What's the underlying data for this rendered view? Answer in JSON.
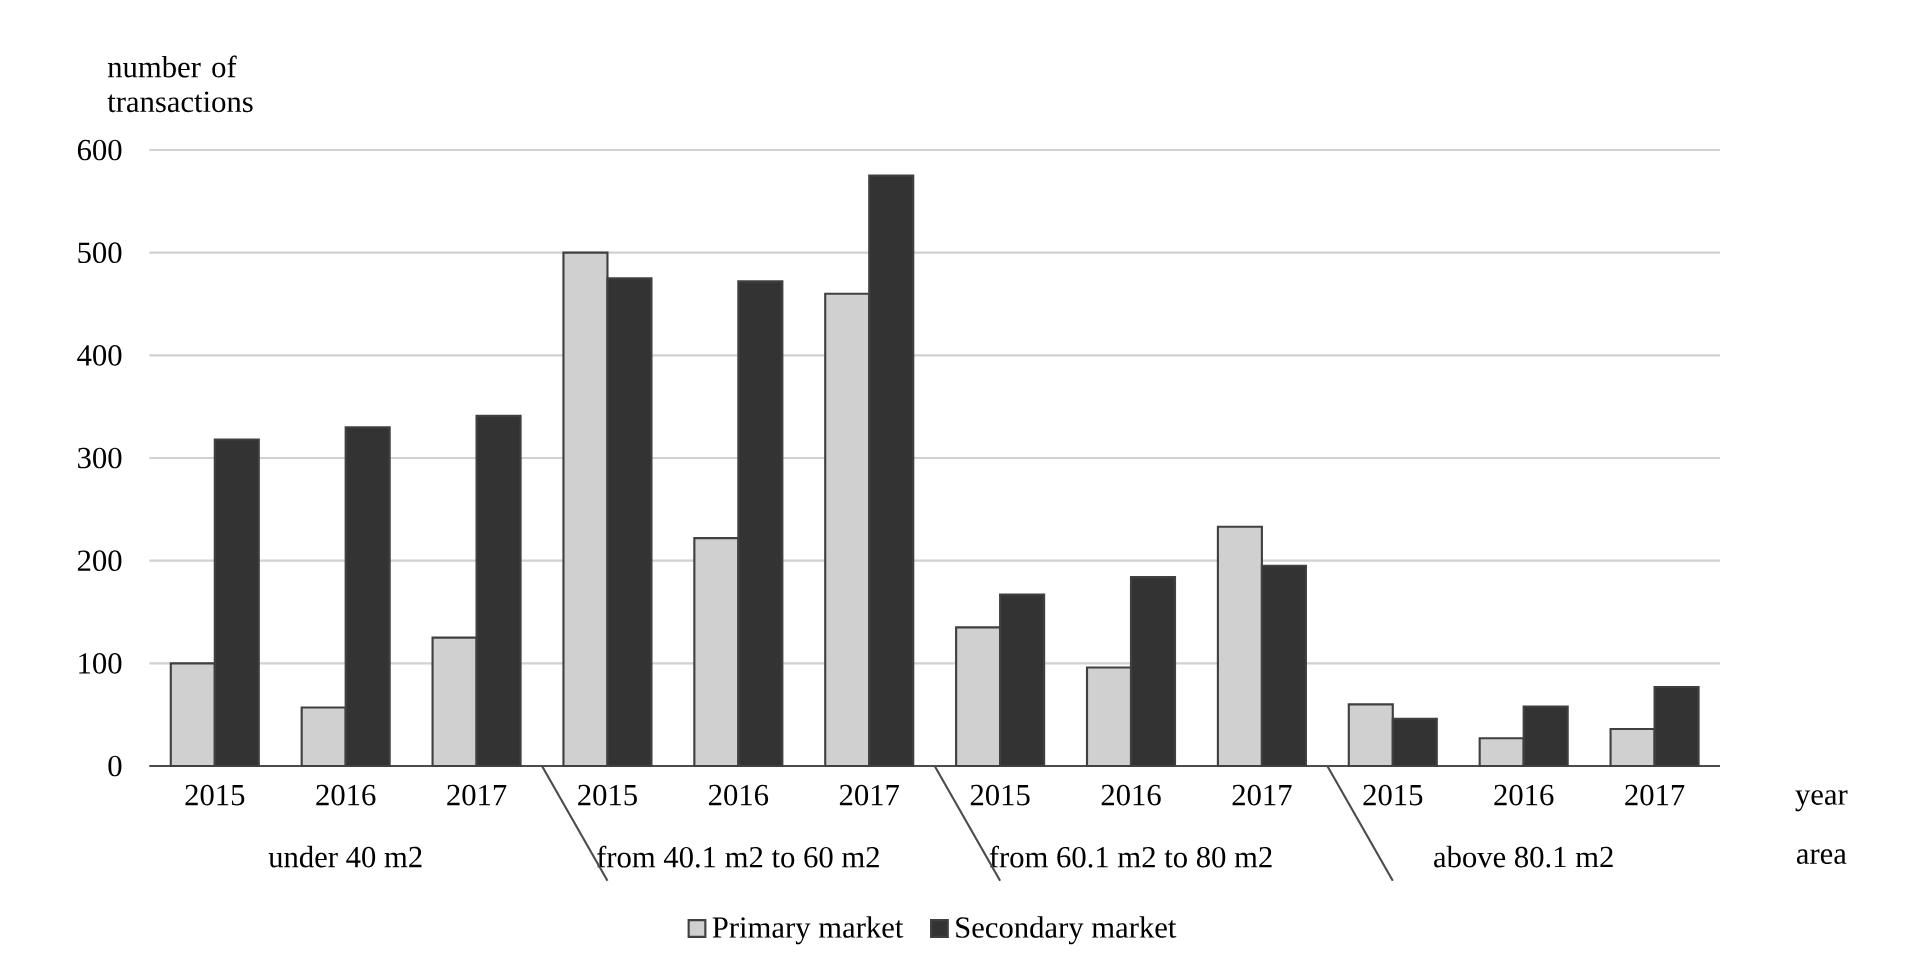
{
  "chart_data": {
    "type": "bar",
    "ylabel": "number of transactions",
    "xlabel": "year",
    "categories": [
      "2015",
      "2016",
      "2017",
      "2015",
      "2016",
      "2017",
      "2015",
      "2016",
      "2017",
      "2015",
      "2016",
      "2017"
    ],
    "annotations": [
      "under 40 m2",
      "from 40.1 m2 to 60 m2",
      "from 60.1 m2 to 80 m2",
      "above 80.1 m2",
      "area"
    ],
    "series": [
      {
        "name": "Primary market",
        "color": "#d0d0d0",
        "values": [
          100,
          57,
          125,
          500,
          222,
          460,
          135,
          96,
          233,
          60,
          27,
          36
        ]
      },
      {
        "name": "Secondary market",
        "color": "#333333",
        "values": [
          318,
          330,
          341,
          475,
          472,
          575,
          167,
          184,
          195,
          46,
          58,
          77
        ]
      }
    ],
    "ylim": [
      0,
      600
    ],
    "yticks": [
      0,
      100,
      200,
      300,
      400,
      500,
      600
    ],
    "grid": "y",
    "legend": "bottom"
  }
}
